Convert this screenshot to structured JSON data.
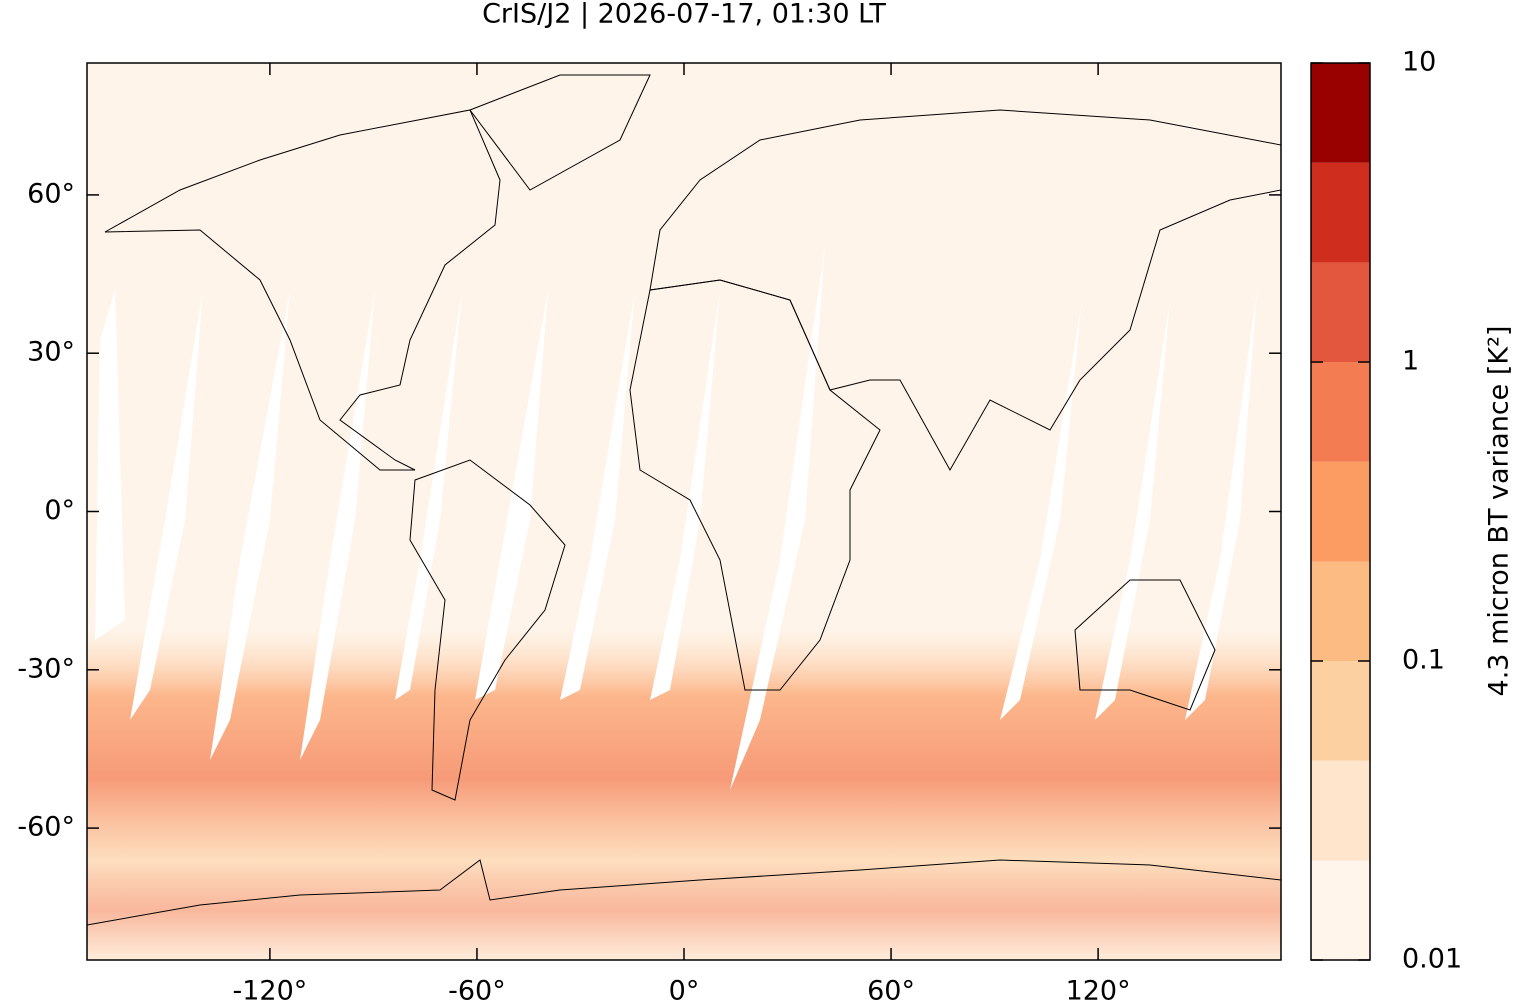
{
  "chart_data": {
    "type": "map",
    "title": "CrIS/J2 | 2026-07-17, 01:30 LT",
    "xlim": [
      -173,
      173
    ],
    "ylim": [
      -85,
      85
    ],
    "xticks": [
      {
        "value": -120,
        "label": "-120°"
      },
      {
        "value": -60,
        "label": "-60°"
      },
      {
        "value": 0,
        "label": "0°"
      },
      {
        "value": 60,
        "label": "60°"
      },
      {
        "value": 120,
        "label": "120°"
      }
    ],
    "yticks": [
      {
        "value": -60,
        "label": "-60°"
      },
      {
        "value": -30,
        "label": "-30°"
      },
      {
        "value": 0,
        "label": "0°"
      },
      {
        "value": 30,
        "label": "30°"
      },
      {
        "value": 60,
        "label": "60°"
      }
    ],
    "colorbar": {
      "label": "4.3 micron BT variance [K²]",
      "log": true,
      "lim": [
        0.01,
        10
      ],
      "ticks": [
        0.01,
        0.1,
        1,
        10
      ],
      "levels": [
        0.01,
        0.0215,
        0.0464,
        0.1,
        0.215,
        0.464,
        1,
        2.15,
        4.64,
        10
      ],
      "colors": [
        "#fff5eb",
        "#fee5cc",
        "#fdd0a2",
        "#fdbb84",
        "#fc9c63",
        "#f47c52",
        "#e4573f",
        "#cf2e1f",
        "#990000"
      ]
    }
  }
}
